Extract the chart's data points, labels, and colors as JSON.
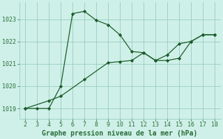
{
  "title": "Graphe pression niveau de la mer (hPa)",
  "background_color": "#cff0e8",
  "plot_bg_color": "#cff0e8",
  "grid_color": "#99ccc0",
  "line_color": "#1a5c2a",
  "marker_color": "#1a5c2a",
  "xlim": [
    1.5,
    18.5
  ],
  "ylim": [
    1018.55,
    1023.75
  ],
  "xticks": [
    2,
    3,
    4,
    5,
    6,
    7,
    8,
    9,
    10,
    11,
    12,
    13,
    14,
    15,
    16,
    17,
    18
  ],
  "yticks": [
    1019,
    1020,
    1021,
    1022,
    1023
  ],
  "series1_x": [
    2,
    3,
    4,
    5,
    6,
    7,
    8,
    9,
    10,
    11,
    12,
    13,
    14,
    15,
    16,
    17,
    18
  ],
  "series1_y": [
    1019.0,
    1019.0,
    1019.0,
    1020.0,
    1023.25,
    1023.35,
    1022.95,
    1022.75,
    1022.3,
    1021.55,
    1021.5,
    1021.15,
    1021.15,
    1021.25,
    1022.0,
    1022.3,
    1022.3
  ],
  "series2_x": [
    2,
    4,
    5,
    7,
    9,
    10,
    11,
    12,
    13,
    14,
    15,
    16,
    17,
    18
  ],
  "series2_y": [
    1019.0,
    1019.35,
    1019.55,
    1020.3,
    1021.05,
    1021.1,
    1021.15,
    1021.5,
    1021.15,
    1021.4,
    1021.9,
    1022.0,
    1022.3,
    1022.3
  ],
  "tick_fontsize": 6,
  "xlabel_fontsize": 7,
  "tick_color": "#2a6e3a"
}
